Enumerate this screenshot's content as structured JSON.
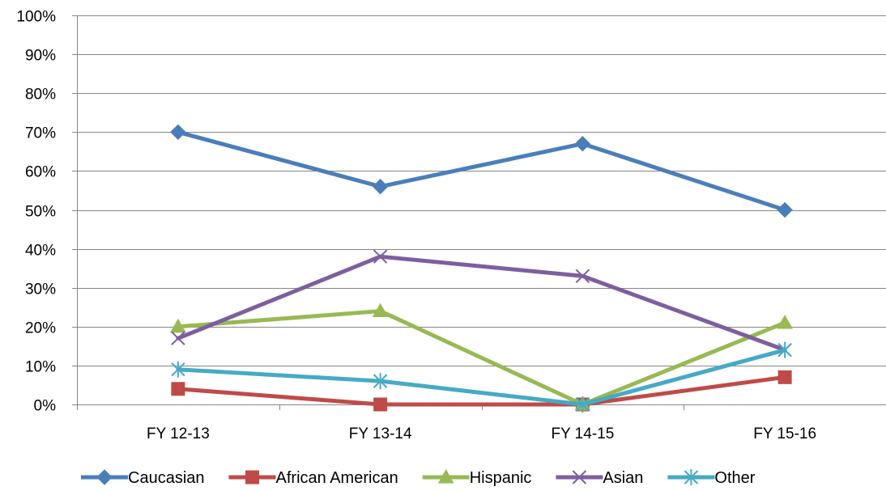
{
  "chart_data": {
    "type": "line",
    "categories": [
      "FY 12-13",
      "FY 13-14",
      "FY 14-15",
      "FY 15-16"
    ],
    "ylim": [
      0,
      100
    ],
    "y_ticks": [
      0,
      10,
      20,
      30,
      40,
      50,
      60,
      70,
      80,
      90,
      100
    ],
    "y_tick_labels": [
      "0%",
      "10%",
      "20%",
      "30%",
      "40%",
      "50%",
      "60%",
      "70%",
      "80%",
      "90%",
      "100%"
    ],
    "grid": "horizontal",
    "legend_position": "bottom",
    "series": [
      {
        "name": "Caucasian",
        "values": [
          70,
          56,
          67,
          50
        ],
        "color": "#4A7EBB",
        "marker": "diamond"
      },
      {
        "name": "African American",
        "values": [
          4,
          0,
          0,
          7
        ],
        "color": "#BE4B48",
        "marker": "square"
      },
      {
        "name": "Hispanic",
        "values": [
          20,
          24,
          0,
          21
        ],
        "color": "#98B954",
        "marker": "triangle"
      },
      {
        "name": "Asian",
        "values": [
          17,
          38,
          33,
          14
        ],
        "color": "#7D5FA0",
        "marker": "x"
      },
      {
        "name": "Other",
        "values": [
          9,
          6,
          0,
          14
        ],
        "color": "#46AAC5",
        "marker": "star"
      }
    ]
  }
}
